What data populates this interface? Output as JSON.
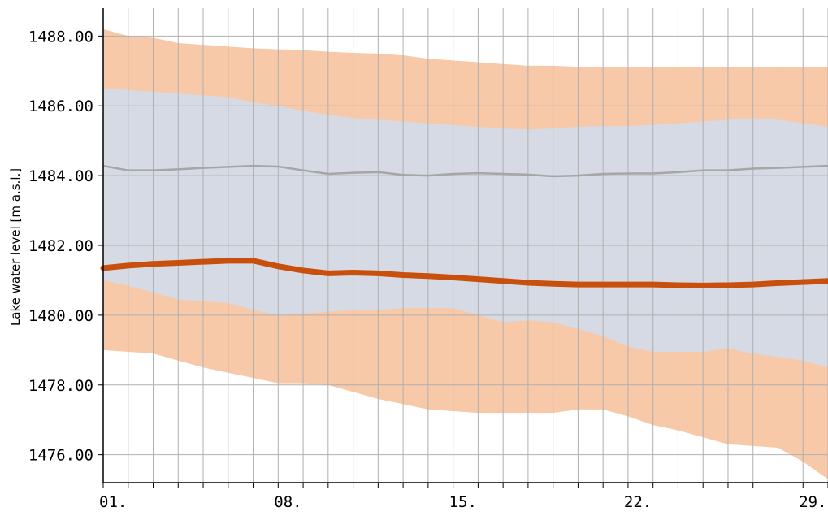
{
  "chart_data": {
    "type": "area",
    "title": "",
    "ylabel": "Lake water level [m a.s.l.]",
    "xlabel": "",
    "ylim": [
      1475.2,
      1488.8
    ],
    "xlim": [
      1,
      30
    ],
    "grid": true,
    "x_tick_values": [
      1,
      8,
      15,
      22,
      29
    ],
    "x_tick_labels": [
      "01.",
      "08.",
      "15.",
      "22.",
      "29."
    ],
    "y_tick_values": [
      1476,
      1478,
      1480,
      1482,
      1484,
      1486,
      1488
    ],
    "y_tick_labels": [
      "1476.00",
      "1478.00",
      "1480.00",
      "1482.00",
      "1484.00",
      "1486.00",
      "1488.00"
    ],
    "colors": {
      "outer_band": "#f8c9a8",
      "inner_band": "#d5dae4",
      "median_line": "#a6a6a6",
      "current_line": "#c9500c",
      "grid": "#b0b0b0"
    },
    "x": [
      1,
      2,
      3,
      4,
      5,
      6,
      7,
      8,
      9,
      10,
      11,
      12,
      13,
      14,
      15,
      16,
      17,
      18,
      19,
      20,
      21,
      22,
      23,
      24,
      25,
      26,
      27,
      28,
      29,
      30
    ],
    "series": [
      {
        "role": "outer_range",
        "upper": [
          1488.2,
          1488.0,
          1487.95,
          1487.8,
          1487.75,
          1487.7,
          1487.65,
          1487.62,
          1487.6,
          1487.55,
          1487.52,
          1487.5,
          1487.45,
          1487.35,
          1487.3,
          1487.25,
          1487.2,
          1487.15,
          1487.15,
          1487.12,
          1487.1,
          1487.1,
          1487.1,
          1487.1,
          1487.1,
          1487.1,
          1487.1,
          1487.1,
          1487.1,
          1487.1
        ],
        "lower": [
          1479.0,
          1478.95,
          1478.9,
          1478.7,
          1478.5,
          1478.35,
          1478.2,
          1478.05,
          1478.05,
          1478.0,
          1477.8,
          1477.6,
          1477.45,
          1477.3,
          1477.25,
          1477.2,
          1477.2,
          1477.2,
          1477.2,
          1477.3,
          1477.3,
          1477.1,
          1476.85,
          1476.7,
          1476.5,
          1476.3,
          1476.25,
          1476.2,
          1475.8,
          1475.3
        ]
      },
      {
        "role": "inner_range",
        "upper": [
          1486.5,
          1486.45,
          1486.4,
          1486.35,
          1486.3,
          1486.25,
          1486.1,
          1486.0,
          1485.85,
          1485.75,
          1485.65,
          1485.6,
          1485.55,
          1485.5,
          1485.45,
          1485.4,
          1485.35,
          1485.32,
          1485.35,
          1485.4,
          1485.42,
          1485.42,
          1485.45,
          1485.5,
          1485.55,
          1485.6,
          1485.65,
          1485.6,
          1485.5,
          1485.4
        ],
        "lower": [
          1481.0,
          1480.85,
          1480.65,
          1480.45,
          1480.4,
          1480.35,
          1480.15,
          1480.0,
          1480.05,
          1480.1,
          1480.15,
          1480.15,
          1480.2,
          1480.2,
          1480.2,
          1480.0,
          1479.8,
          1479.85,
          1479.8,
          1479.6,
          1479.4,
          1479.1,
          1478.95,
          1478.95,
          1478.95,
          1479.05,
          1478.9,
          1478.8,
          1478.7,
          1478.5
        ]
      },
      {
        "role": "median",
        "values": [
          1484.28,
          1484.15,
          1484.15,
          1484.18,
          1484.22,
          1484.25,
          1484.28,
          1484.26,
          1484.15,
          1484.05,
          1484.08,
          1484.1,
          1484.02,
          1484.0,
          1484.05,
          1484.07,
          1484.05,
          1484.03,
          1483.98,
          1484.0,
          1484.05,
          1484.06,
          1484.06,
          1484.1,
          1484.15,
          1484.15,
          1484.2,
          1484.22,
          1484.25,
          1484.28
        ]
      },
      {
        "role": "current",
        "values": [
          1481.35,
          1481.42,
          1481.47,
          1481.5,
          1481.53,
          1481.56,
          1481.56,
          1481.4,
          1481.28,
          1481.2,
          1481.22,
          1481.2,
          1481.15,
          1481.12,
          1481.08,
          1481.03,
          1480.98,
          1480.93,
          1480.9,
          1480.88,
          1480.88,
          1480.88,
          1480.88,
          1480.86,
          1480.85,
          1480.86,
          1480.88,
          1480.92,
          1480.95,
          1480.98
        ]
      }
    ]
  }
}
